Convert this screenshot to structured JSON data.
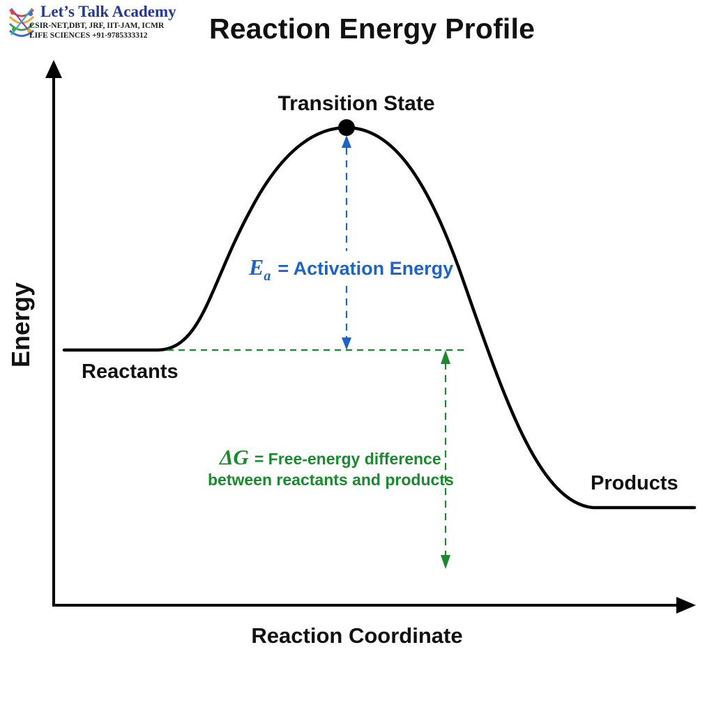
{
  "logo": {
    "name": "Let’s Talk Academy",
    "line1": "CSIR-NET,DBT, JRF, IIT-JAM, ICMR",
    "line2": "LIFE SCIENCES  +91-9785333312"
  },
  "title": "Reaction Energy Profile",
  "axes": {
    "y_label": "Energy",
    "x_label": "Reaction Coordinate"
  },
  "states": {
    "transition": "Transition State",
    "reactants": "Reactants",
    "products": "Products"
  },
  "activation": {
    "symbol": "E",
    "subscript": "a",
    "text": "= Activation Energy",
    "color": "#1f63c4"
  },
  "free_energy": {
    "symbol": "ΔG",
    "text_line1": "= Free-energy difference",
    "text_line2": "between reactants and products",
    "color": "#1a8a2e"
  },
  "curve_color": "#000000"
}
